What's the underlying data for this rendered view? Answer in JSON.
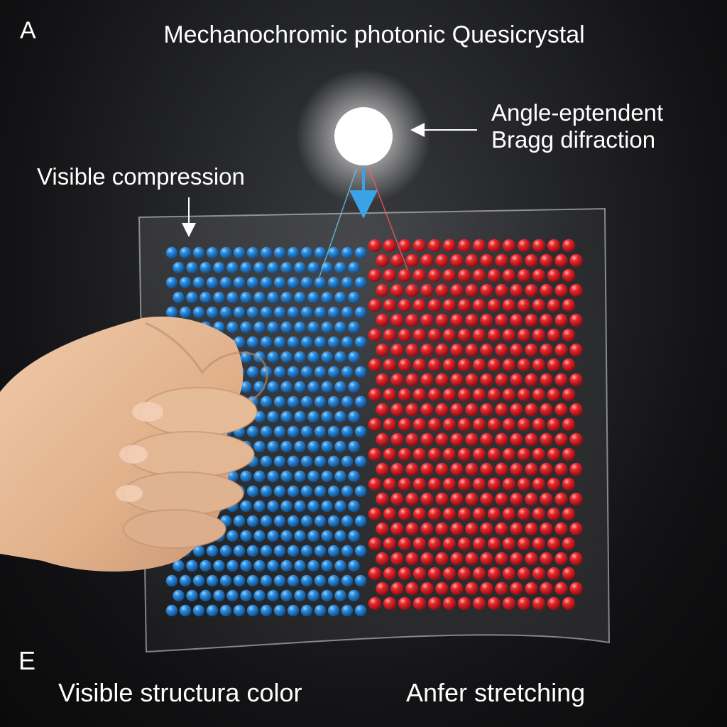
{
  "panel_letter_top": "A",
  "title": "Mechanochromic photonic Quesicrystal",
  "light_label": {
    "line1": "Angle-eptendent",
    "line2": "Bragg difraction"
  },
  "compression_label": "Visible compression",
  "panel_letter_bottom": "E",
  "bottom_left_label": "Visible structura color",
  "bottom_right_label": "Anfer stretching",
  "colors": {
    "compressed_beads": "#1f78c8",
    "stretched_beads": "#e01e25",
    "background": "#1c1d20",
    "light_source": "#ffffff",
    "skin": "#e3b896"
  }
}
